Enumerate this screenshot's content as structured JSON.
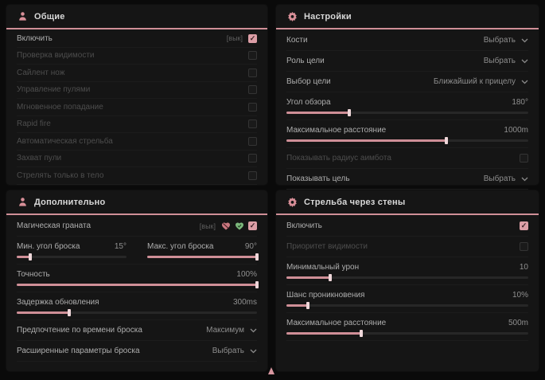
{
  "colors": {
    "background": "#0a0a0a",
    "panel": "#151515",
    "accent": "#cf8f97",
    "checkbox_checked": "#dc9ea6",
    "heart_off": "#c97880",
    "heart_on": "#7cb87c"
  },
  "icons": {
    "general_header": "person-icon",
    "settings_header": "gear-icon",
    "additional_header": "person-icon",
    "wallbang_header": "gear-icon",
    "grenade_off": "heart-slash-icon",
    "grenade_on": "heart-check-icon",
    "dropdown": "chevron-down-icon",
    "cursor": "triangle-up-cursor"
  },
  "panels": {
    "general": {
      "title": "Общие",
      "enable": {
        "label": "Включить",
        "keybind": "[вык]",
        "checked": true
      },
      "rows": [
        {
          "label": "Проверка видимости",
          "checked": false
        },
        {
          "label": "Сайлент нож",
          "checked": false
        },
        {
          "label": "Управление пулями",
          "checked": false
        },
        {
          "label": "Мгновенное попадание",
          "checked": false
        },
        {
          "label": "Rapid fire",
          "checked": false
        },
        {
          "label": "Автоматическая стрельба",
          "checked": false
        },
        {
          "label": "Захват пули",
          "checked": false
        },
        {
          "label": "Стрелять только в тело",
          "checked": false
        }
      ]
    },
    "settings": {
      "title": "Настройки",
      "bones": {
        "label": "Кости",
        "value": "Выбрать"
      },
      "target_role": {
        "label": "Роль цели",
        "value": "Выбрать"
      },
      "target_choice": {
        "label": "Выбор цели",
        "value": "Ближайший к прицелу"
      },
      "fov": {
        "label": "Угол обзора",
        "value": "180°",
        "fill": 26
      },
      "max_distance": {
        "label": "Максимальное расстояние",
        "value": "1000m",
        "fill": 66
      },
      "show_radius": {
        "label": "Показывать радиус аимбота",
        "checked": false
      },
      "show_target": {
        "label": "Показывать цель",
        "value": "Выбрать"
      }
    },
    "additional": {
      "title": "Дополнительно",
      "magic_grenade": {
        "label": "Магическая граната",
        "keybind": "[вык]",
        "checked": true
      },
      "min_angle": {
        "label": "Мин. угол броска",
        "value": "15°",
        "fill": 12
      },
      "max_angle": {
        "label": "Макс. угол броска",
        "value": "90°",
        "fill": 100
      },
      "accuracy": {
        "label": "Точность",
        "value": "100%",
        "fill": 100
      },
      "update_delay": {
        "label": "Задержка обновления",
        "value": "300ms",
        "fill": 22
      },
      "throw_time": {
        "label": "Предпочтение по времени броска",
        "value": "Максимум"
      },
      "advanced": {
        "label": "Расширенные параметры броска",
        "value": "Выбрать"
      }
    },
    "wallbang": {
      "title": "Стрельба через стены",
      "enable": {
        "label": "Включить",
        "checked": true
      },
      "visibility_priority": {
        "label": "Приоритет видимости",
        "checked": false
      },
      "min_damage": {
        "label": "Минимальный урон",
        "value": "10",
        "fill": 18
      },
      "penetration_chance": {
        "label": "Шанс проникновения",
        "value": "10%",
        "fill": 9
      },
      "max_distance": {
        "label": "Максимальное расстояние",
        "value": "500m",
        "fill": 31
      }
    }
  }
}
